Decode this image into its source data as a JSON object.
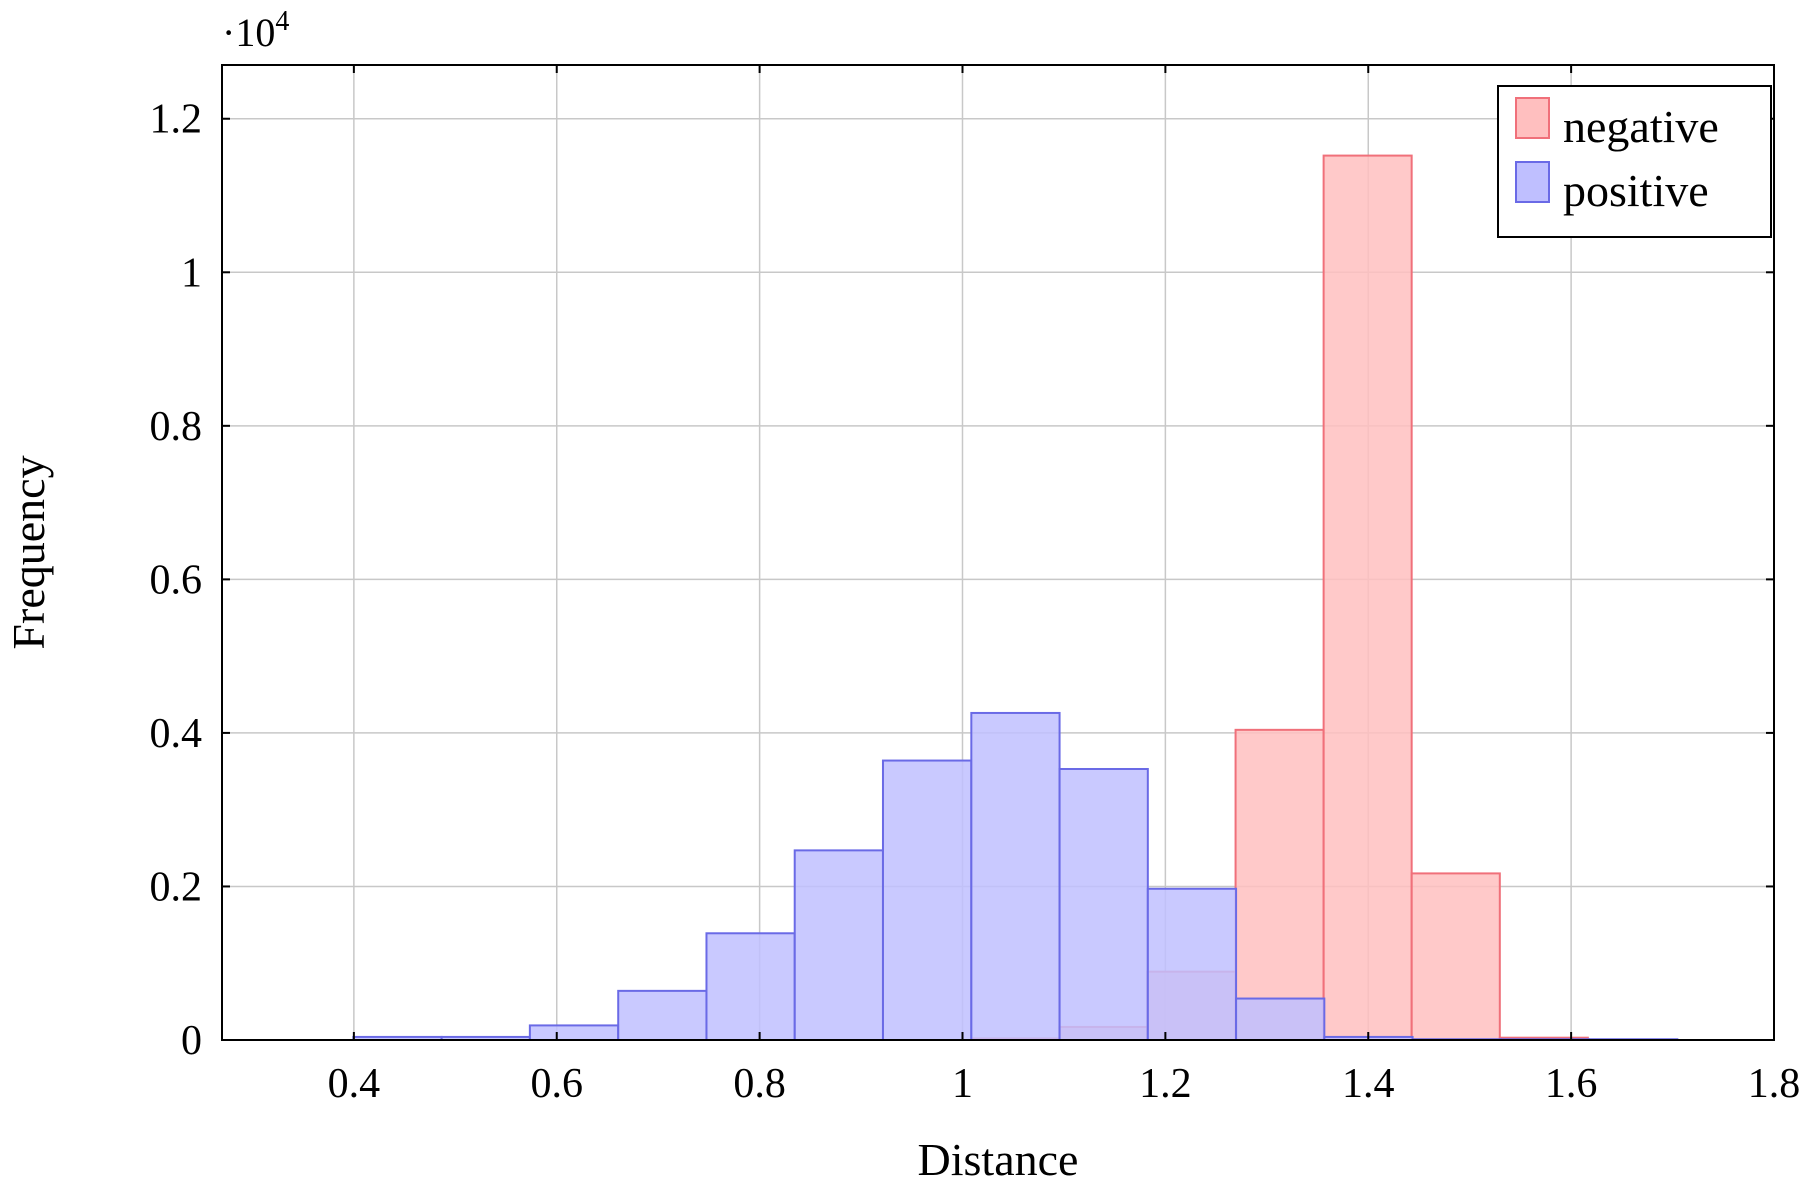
{
  "chart_data": {
    "type": "histogram",
    "xlabel": "Distance",
    "ylabel": "Frequency",
    "y_multiplier": {
      "base": "·10",
      "exponent": "4"
    },
    "xlim": [
      0.27,
      1.8
    ],
    "ylim": [
      0,
      1.27
    ],
    "x_ticks": [
      {
        "value": 0.4,
        "label": "0.4"
      },
      {
        "value": 0.6,
        "label": "0.6"
      },
      {
        "value": 0.8,
        "label": "0.8"
      },
      {
        "value": 1.0,
        "label": "1"
      },
      {
        "value": 1.2,
        "label": "1.2"
      },
      {
        "value": 1.4,
        "label": "1.4"
      },
      {
        "value": 1.6,
        "label": "1.6"
      },
      {
        "value": 1.8,
        "label": "1.8"
      }
    ],
    "y_ticks": [
      {
        "value": 0,
        "label": "0"
      },
      {
        "value": 0.2,
        "label": "0.2"
      },
      {
        "value": 0.4,
        "label": "0.4"
      },
      {
        "value": 0.6,
        "label": "0.6"
      },
      {
        "value": 0.8,
        "label": "0.8"
      },
      {
        "value": 1.0,
        "label": "1"
      },
      {
        "value": 1.2,
        "label": "1.2"
      }
    ],
    "grid": true,
    "legend": {
      "position": "top-right"
    },
    "series": [
      {
        "name": "negative",
        "fill": "#ffbfbf",
        "stroke": "#f0707a",
        "bins": [
          {
            "x0": 1.0087,
            "x1": 1.0955,
            "value": 0.002
          },
          {
            "x0": 1.0955,
            "x1": 1.1823,
            "value": 0.017
          },
          {
            "x0": 1.1823,
            "x1": 1.2692,
            "value": 0.089
          },
          {
            "x0": 1.2692,
            "x1": 1.356,
            "value": 0.404
          },
          {
            "x0": 1.356,
            "x1": 1.4428,
            "value": 1.152
          },
          {
            "x0": 1.4428,
            "x1": 1.5297,
            "value": 0.217
          },
          {
            "x0": 1.5297,
            "x1": 1.6165,
            "value": 0.003
          }
        ]
      },
      {
        "name": "positive",
        "fill": "#bfbfff",
        "stroke": "#6a6ae6",
        "bins": [
          {
            "x0": 0.3995,
            "x1": 0.4865,
            "value": 0.004
          },
          {
            "x0": 0.4865,
            "x1": 0.5735,
            "value": 0.004
          },
          {
            "x0": 0.5735,
            "x1": 0.6606,
            "value": 0.019
          },
          {
            "x0": 0.6606,
            "x1": 0.7476,
            "value": 0.064
          },
          {
            "x0": 0.7476,
            "x1": 0.8346,
            "value": 0.139
          },
          {
            "x0": 0.8346,
            "x1": 0.9216,
            "value": 0.247
          },
          {
            "x0": 0.9216,
            "x1": 1.0087,
            "value": 0.364
          },
          {
            "x0": 1.0087,
            "x1": 1.0957,
            "value": 0.426
          },
          {
            "x0": 1.0957,
            "x1": 1.1827,
            "value": 0.353
          },
          {
            "x0": 1.1827,
            "x1": 1.2697,
            "value": 0.197
          },
          {
            "x0": 1.2697,
            "x1": 1.3567,
            "value": 0.054
          },
          {
            "x0": 1.3567,
            "x1": 1.4437,
            "value": 0.004
          },
          {
            "x0": 1.4437,
            "x1": 1.5307,
            "value": 0.001
          },
          {
            "x0": 1.5307,
            "x1": 1.6177,
            "value": 0.001
          },
          {
            "x0": 1.6177,
            "x1": 1.7047,
            "value": 0.001
          }
        ]
      }
    ]
  }
}
